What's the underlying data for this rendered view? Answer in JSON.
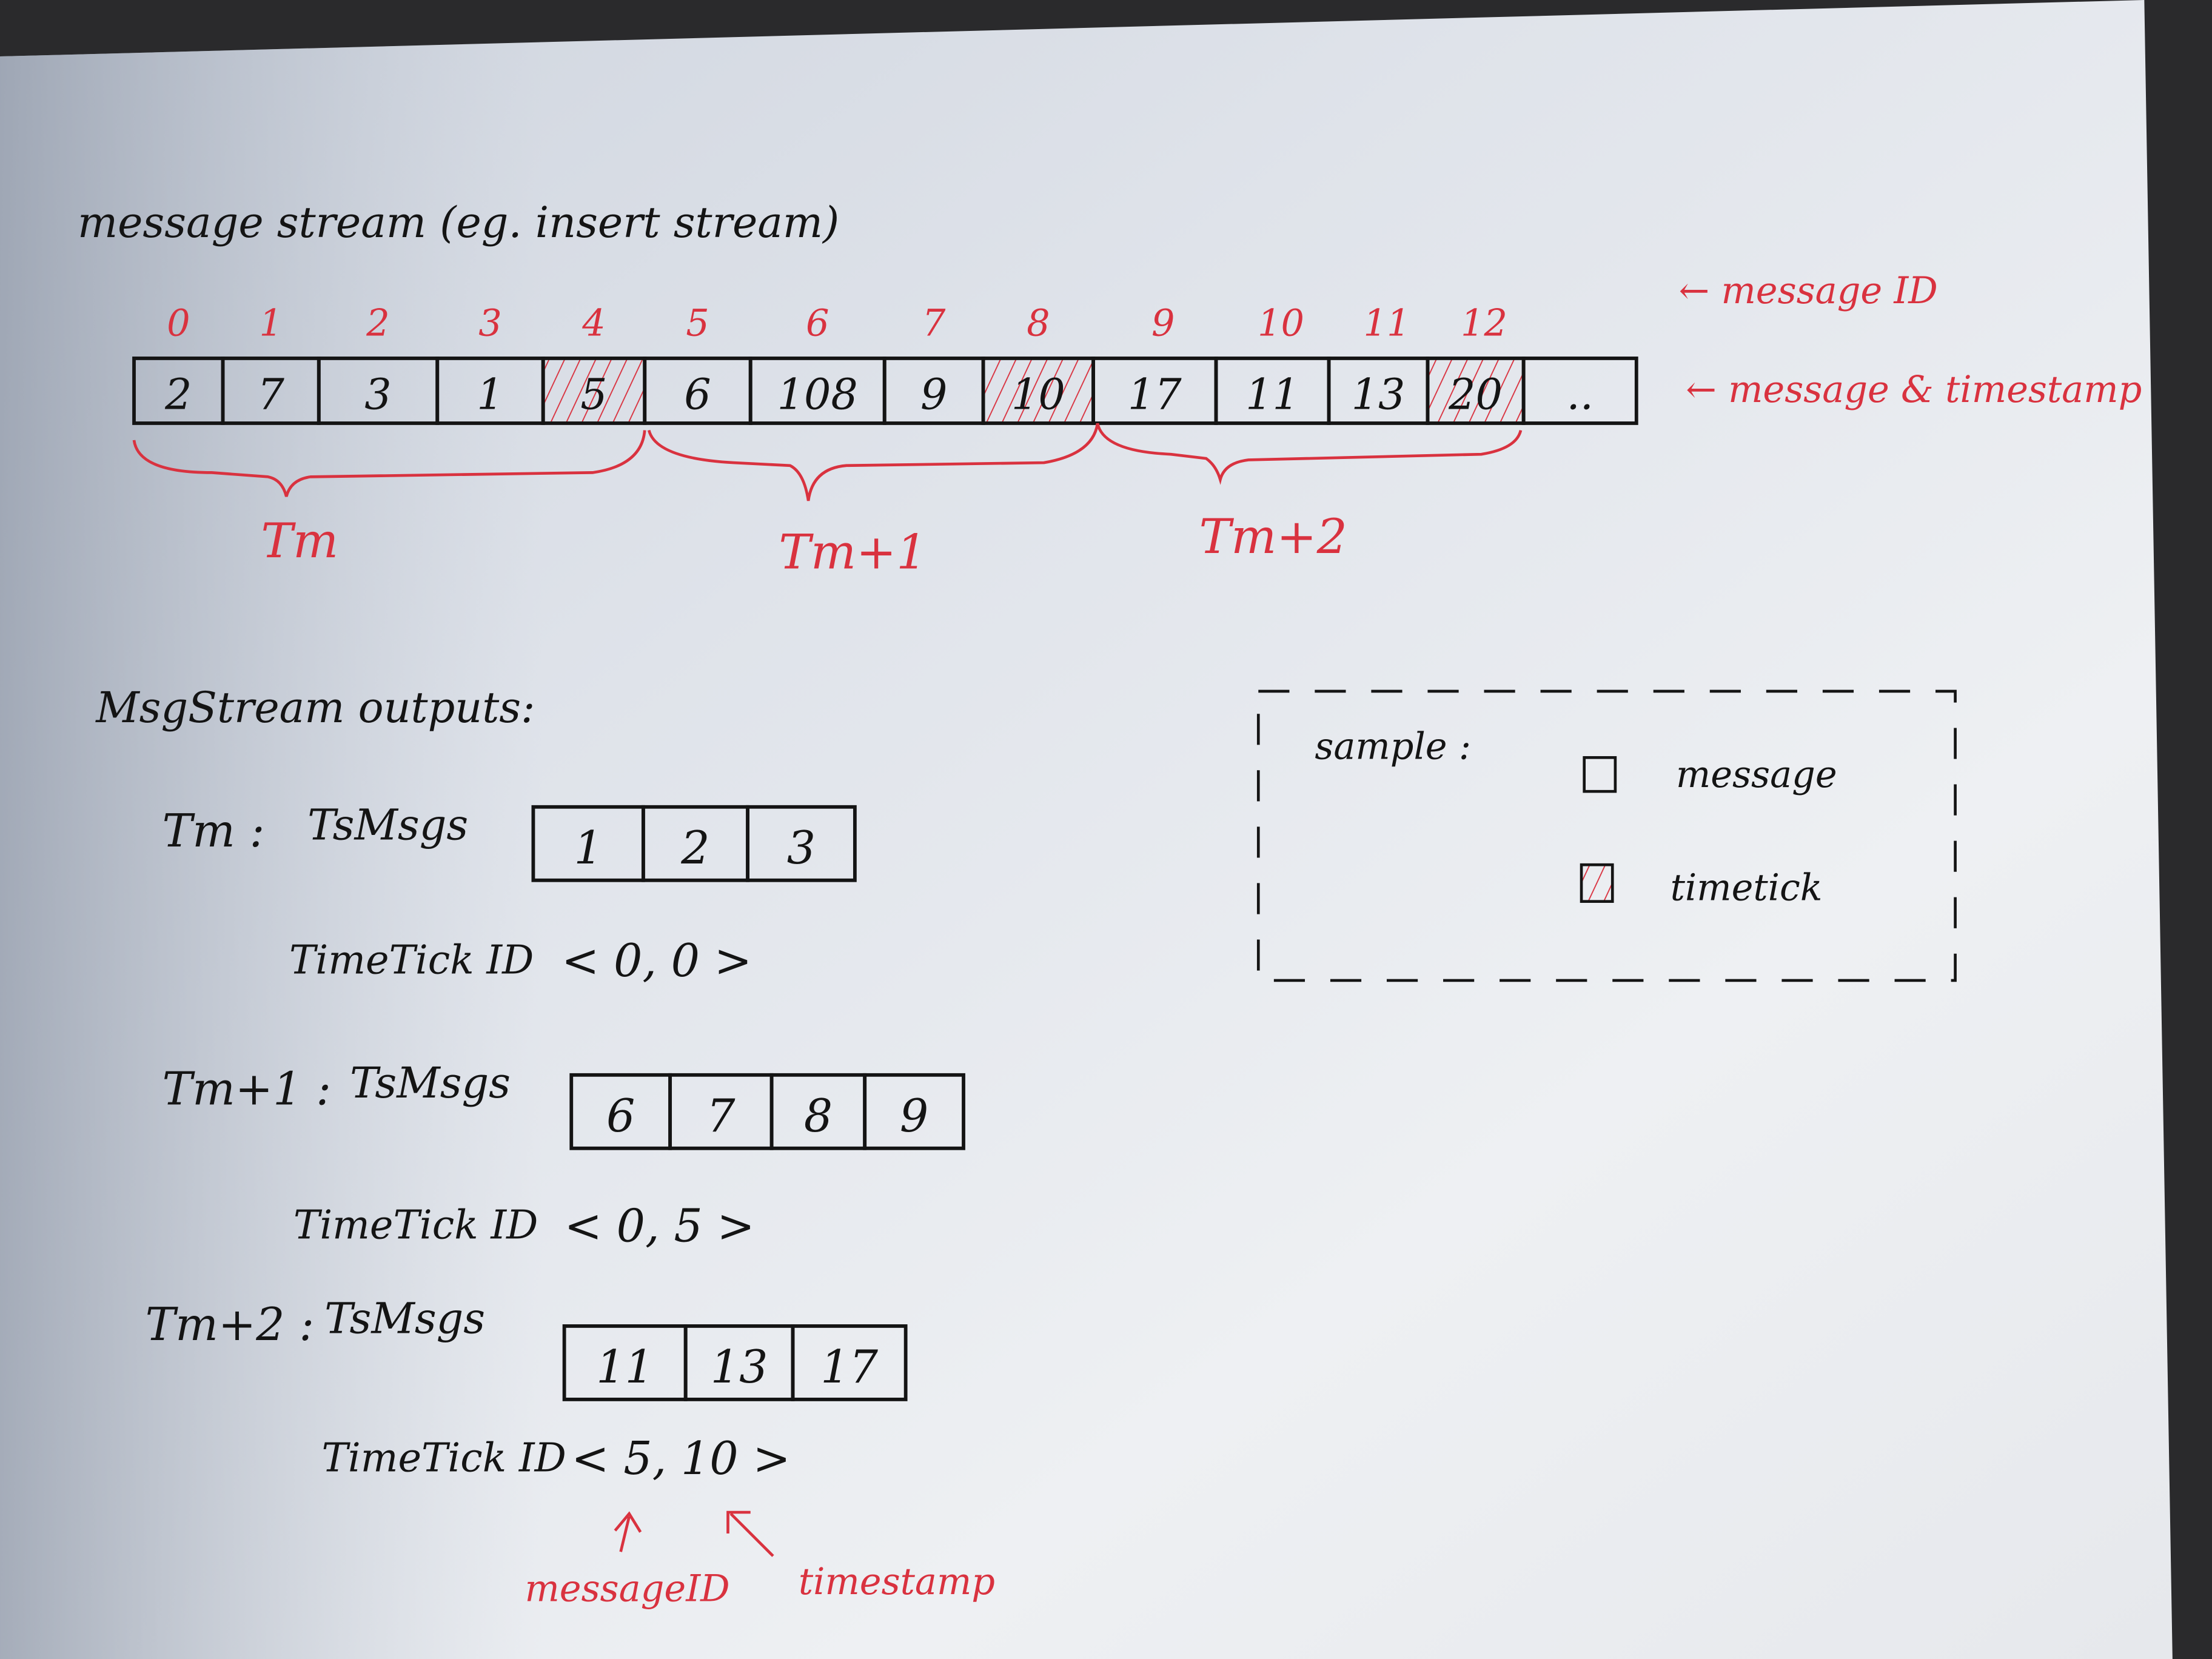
{
  "title": "message stream (eg. insert stream)",
  "stream": {
    "message_ids": [
      "0",
      "1",
      "2",
      "3",
      "4",
      "5",
      "6",
      "7",
      "8",
      "9",
      "10",
      "11",
      "12"
    ],
    "values": [
      "2",
      "7",
      "3",
      "1",
      "5",
      "6",
      "108",
      "9",
      "10",
      "17",
      "11",
      "13",
      "20",
      ".."
    ],
    "timetick_positions": [
      4,
      8,
      12
    ],
    "label_ids": "← message ID",
    "label_values": "← message & timestamp",
    "groups": [
      "Tm",
      "Tm+1",
      "Tm+2"
    ]
  },
  "outputs": {
    "heading": "MsgStream outputs:",
    "ts_label": "TsMsgs",
    "tick_label": "TimeTick ID",
    "rows": [
      {
        "name": "Tm :",
        "msgs": [
          "1",
          "2",
          "3"
        ],
        "tick": "< 0, 0 >"
      },
      {
        "name": "Tm+1 :",
        "msgs": [
          "6",
          "7",
          "8",
          "9"
        ],
        "tick": "< 0, 5 >"
      },
      {
        "name": "Tm+2 :",
        "msgs": [
          "11",
          "13",
          "17"
        ],
        "tick": "< 5, 10 >"
      }
    ],
    "annotation_id": "messageID",
    "annotation_ts": "timestamp"
  },
  "legend": {
    "title": "sample :",
    "message": "message",
    "timetick": "timetick"
  },
  "colors": {
    "ink": "#141414",
    "red": "#d9323f",
    "paper": "#e4e8ef"
  }
}
